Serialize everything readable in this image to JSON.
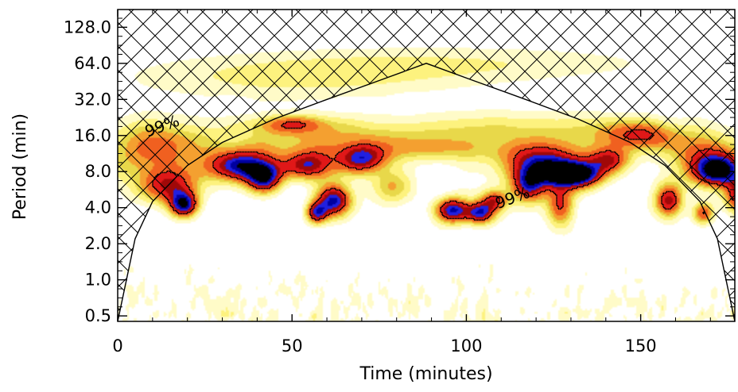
{
  "chart_data": {
    "type": "heatmap",
    "title": "",
    "xlabel": "Time (minutes)",
    "ylabel": "Period (min)",
    "xlim": [
      0,
      177
    ],
    "ylim": [
      0.45,
      180
    ],
    "y_scale": "log2",
    "x_ticks": [
      {
        "value": 0,
        "label": "0"
      },
      {
        "value": 50,
        "label": "50"
      },
      {
        "value": 100,
        "label": "100"
      },
      {
        "value": 150,
        "label": "150"
      }
    ],
    "y_ticks": [
      {
        "value": 0.5,
        "label": "0.5"
      },
      {
        "value": 1,
        "label": "1.0"
      },
      {
        "value": 2,
        "label": "2.0"
      },
      {
        "value": 4,
        "label": "4.0"
      },
      {
        "value": 8,
        "label": "8.0"
      },
      {
        "value": 16,
        "label": "16.0"
      },
      {
        "value": 32,
        "label": "32.0"
      },
      {
        "value": 64,
        "label": "64.0"
      },
      {
        "value": 128,
        "label": "128.0"
      }
    ],
    "colorscale": [
      "#ffffff",
      "#fffbc8",
      "#fdf27e",
      "#e8d84a",
      "#f4a030",
      "#f06020",
      "#e01818",
      "#a00808",
      "#2020e0",
      "#0000a0",
      "#000000"
    ],
    "blobs": [
      {
        "t": 50,
        "p": 48,
        "dt": 48,
        "dp": 0.6,
        "v": 0.22
      },
      {
        "t": 100,
        "p": 64,
        "dt": 60,
        "dp": 0.5,
        "v": 0.18
      },
      {
        "t": 60,
        "p": 16,
        "dt": 38,
        "dp": 0.5,
        "v": 0.3
      },
      {
        "t": 120,
        "p": 18,
        "dt": 35,
        "dp": 0.5,
        "v": 0.28
      },
      {
        "t": 50,
        "p": 20,
        "dt": 10,
        "dp": 0.25,
        "v": 0.45
      },
      {
        "t": 10,
        "p": 12,
        "dt": 14,
        "dp": 0.8,
        "v": 0.5
      },
      {
        "t": 170,
        "p": 10,
        "dt": 12,
        "dp": 0.7,
        "v": 0.6
      },
      {
        "t": 14,
        "p": 6,
        "dt": 9,
        "dp": 0.5,
        "v": 0.62
      },
      {
        "t": 19,
        "p": 4.2,
        "dt": 4,
        "dp": 0.35,
        "v": 0.92
      },
      {
        "t": 36,
        "p": 9,
        "dt": 10,
        "dp": 0.45,
        "v": 0.9
      },
      {
        "t": 42,
        "p": 7,
        "dt": 5,
        "dp": 0.4,
        "v": 0.82
      },
      {
        "t": 55,
        "p": 9,
        "dt": 7,
        "dp": 0.4,
        "v": 0.7
      },
      {
        "t": 62,
        "p": 4.6,
        "dt": 5,
        "dp": 0.45,
        "v": 0.92
      },
      {
        "t": 57,
        "p": 3.6,
        "dt": 3,
        "dp": 0.3,
        "v": 0.7
      },
      {
        "t": 70,
        "p": 10,
        "dt": 7,
        "dp": 0.4,
        "v": 0.7
      },
      {
        "t": 80,
        "p": 6,
        "dt": 6,
        "dp": 0.5,
        "v": 0.38
      },
      {
        "t": 96,
        "p": 3.8,
        "dt": 5,
        "dp": 0.35,
        "v": 0.95
      },
      {
        "t": 104,
        "p": 3.6,
        "dt": 4,
        "dp": 0.3,
        "v": 0.8
      },
      {
        "t": 108,
        "p": 4.6,
        "dt": 4,
        "dp": 0.3,
        "v": 0.6
      },
      {
        "t": 122,
        "p": 9,
        "dt": 11,
        "dp": 0.5,
        "v": 0.9
      },
      {
        "t": 131,
        "p": 7.5,
        "dt": 8,
        "dp": 0.35,
        "v": 1.08
      },
      {
        "t": 118,
        "p": 6,
        "dt": 5,
        "dp": 0.45,
        "v": 0.75
      },
      {
        "t": 127,
        "p": 4.2,
        "dt": 4,
        "dp": 0.6,
        "v": 0.62
      },
      {
        "t": 141,
        "p": 10,
        "dt": 6,
        "dp": 0.35,
        "v": 0.62
      },
      {
        "t": 150,
        "p": 16,
        "dt": 11,
        "dp": 0.4,
        "v": 0.48
      },
      {
        "t": 158,
        "p": 4.5,
        "dt": 4,
        "dp": 0.45,
        "v": 0.75
      },
      {
        "t": 172,
        "p": 8,
        "dt": 6,
        "dp": 0.4,
        "v": 0.75
      },
      {
        "t": 178,
        "p": 5,
        "dt": 4,
        "dp": 0.5,
        "v": 0.7
      },
      {
        "t": 168,
        "p": 3.6,
        "dt": 3,
        "dp": 0.3,
        "v": 0.6
      },
      {
        "t": 90,
        "p": 12,
        "dt": 35,
        "dp": 0.35,
        "v": 0.28
      }
    ],
    "cone_of_influence": {
      "t": [
        0,
        5,
        10,
        20,
        30,
        45,
        60,
        75,
        88.5,
        102,
        117,
        132,
        147,
        157,
        167,
        172,
        177
      ],
      "p": [
        0.45,
        2.2,
        4.5,
        9.0,
        14.0,
        22.0,
        32.0,
        46.0,
        64.0,
        46.0,
        32.0,
        22.0,
        14.0,
        9.0,
        4.5,
        2.2,
        0.45
      ]
    },
    "significance_level": 0.6,
    "annotations": [
      {
        "text": "99%",
        "t": 8.5,
        "p": 15.5
      },
      {
        "text": "99%",
        "t": 109,
        "p": 3.9
      }
    ]
  }
}
